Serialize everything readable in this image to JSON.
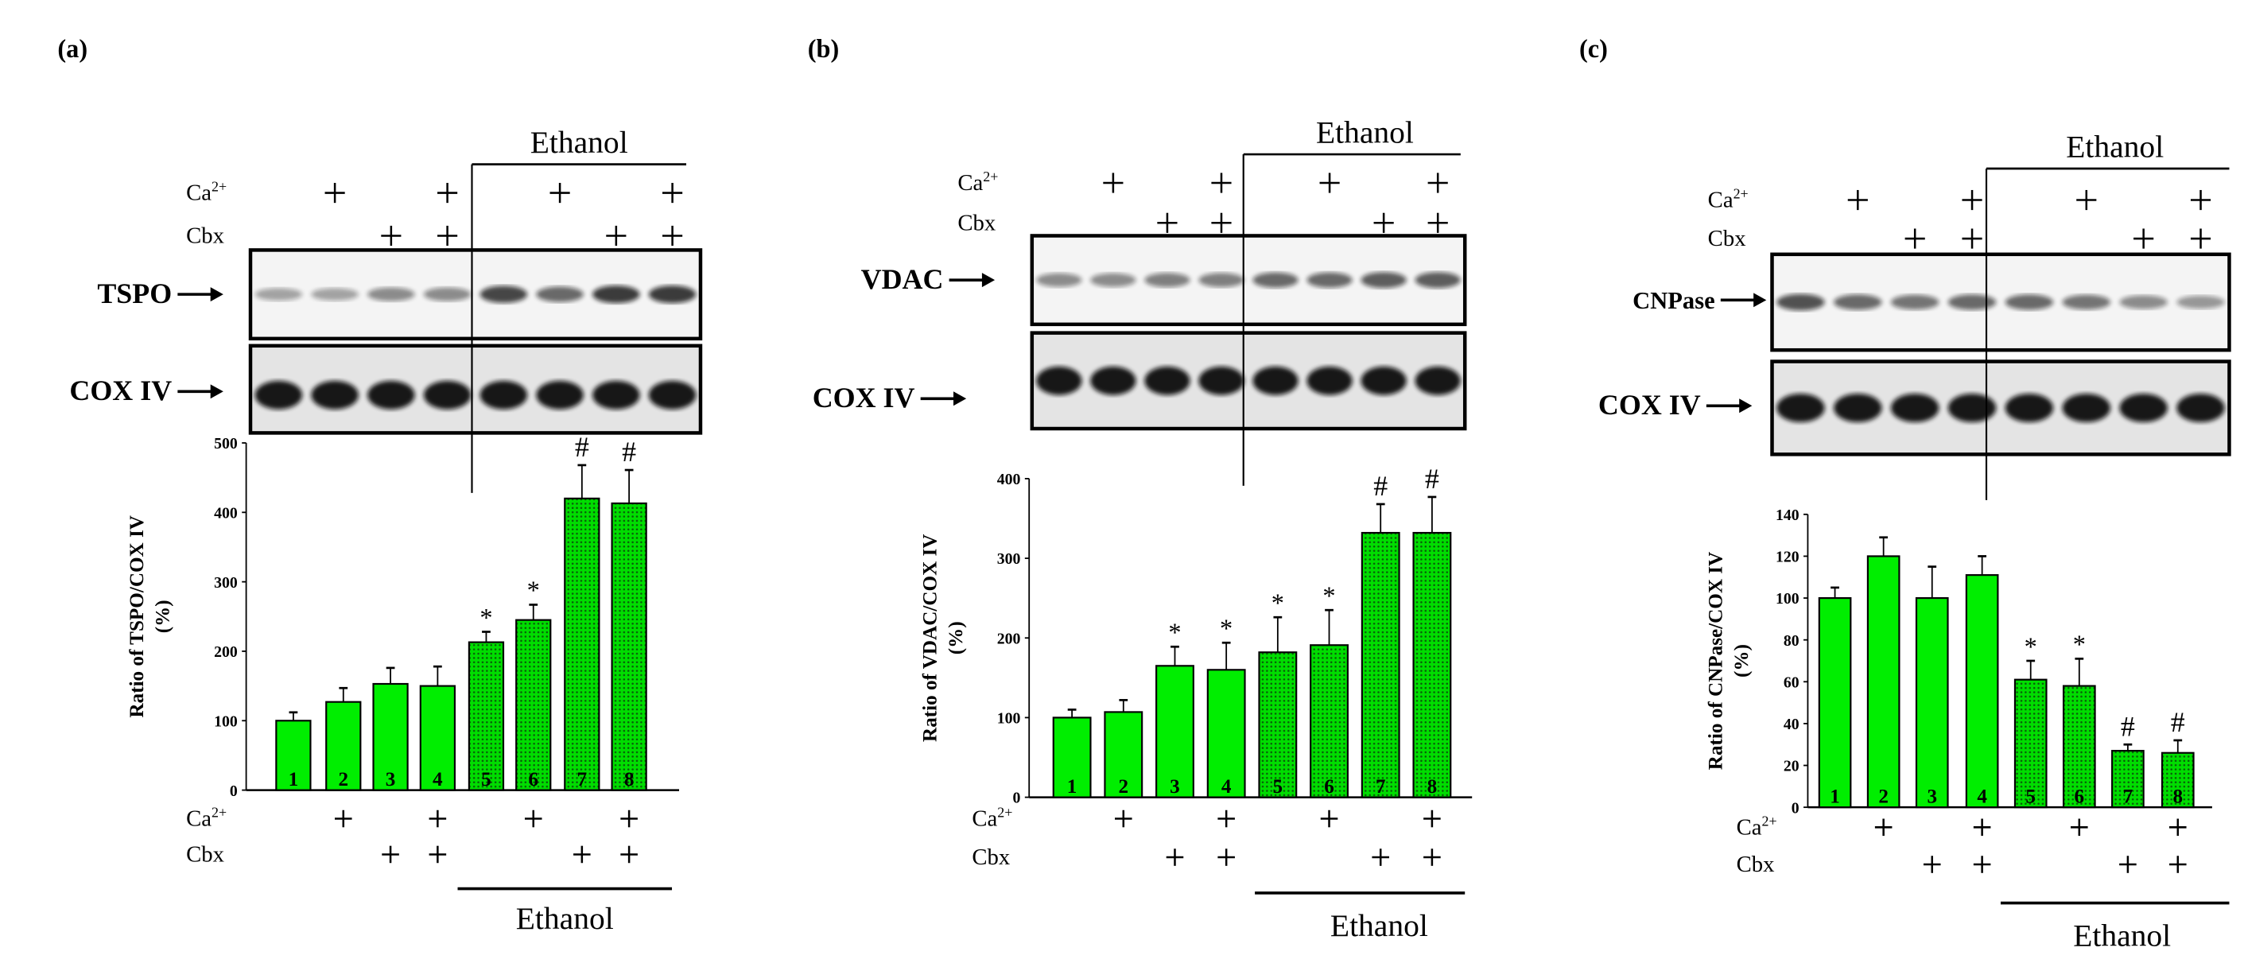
{
  "colors": {
    "bar": "#00ee00",
    "bar_dotted": "#00cc00",
    "ink": "#000000"
  },
  "chart_data": [
    {
      "type": "bar",
      "panel_label": "(a)",
      "blot_labels": [
        "TSPO",
        "COX IV"
      ],
      "treatment_group_label": "Ethanol",
      "row_labels": {
        "ca": "Ca",
        "ca_sup": "2+",
        "cbx": "Cbx"
      },
      "ca": [
        false,
        true,
        false,
        true,
        false,
        true,
        false,
        true
      ],
      "cbx": [
        false,
        false,
        true,
        true,
        false,
        false,
        true,
        true
      ],
      "categories": [
        "1",
        "2",
        "3",
        "4",
        "5",
        "6",
        "7",
        "8"
      ],
      "values": [
        100,
        127,
        153,
        150,
        213,
        245,
        420,
        413
      ],
      "errors": [
        12,
        20,
        23,
        28,
        15,
        22,
        48,
        48
      ],
      "annotations": [
        "",
        "",
        "",
        "",
        "*",
        "*",
        "#",
        "#"
      ],
      "ylabel": "Ratio of TSPO/COX IV",
      "ylabel2": "(%)",
      "ylim": [
        0,
        500
      ],
      "yticks": [
        "0",
        "100",
        "200",
        "300",
        "400",
        "500"
      ]
    },
    {
      "type": "bar",
      "panel_label": "(b)",
      "blot_labels": [
        "VDAC",
        "COX IV"
      ],
      "treatment_group_label": "Ethanol",
      "row_labels": {
        "ca": "Ca",
        "ca_sup": "2+",
        "cbx": "Cbx"
      },
      "ca": [
        false,
        true,
        false,
        true,
        false,
        true,
        false,
        true
      ],
      "cbx": [
        false,
        false,
        true,
        true,
        false,
        false,
        true,
        true
      ],
      "categories": [
        "1",
        "2",
        "3",
        "4",
        "5",
        "6",
        "7",
        "8"
      ],
      "values": [
        100,
        107,
        165,
        160,
        182,
        191,
        332,
        332
      ],
      "errors": [
        10,
        15,
        24,
        34,
        44,
        44,
        36,
        45
      ],
      "annotations": [
        "",
        "",
        "*",
        "*",
        "*",
        "*",
        "#",
        "#"
      ],
      "ylabel": "Ratio of VDAC/COX IV",
      "ylabel2": "(%)",
      "ylim": [
        0,
        400
      ],
      "yticks": [
        "0",
        "100",
        "200",
        "300",
        "400"
      ]
    },
    {
      "type": "bar",
      "panel_label": "(c)",
      "blot_labels": [
        "CNPase",
        "COX IV"
      ],
      "treatment_group_label": "Ethanol",
      "row_labels": {
        "ca": "Ca",
        "ca_sup": "2+",
        "cbx": "Cbx"
      },
      "ca": [
        false,
        true,
        false,
        true,
        false,
        true,
        false,
        true
      ],
      "cbx": [
        false,
        false,
        true,
        true,
        false,
        false,
        true,
        true
      ],
      "categories": [
        "1",
        "2",
        "3",
        "4",
        "5",
        "6",
        "7",
        "8"
      ],
      "values": [
        100,
        120,
        100,
        111,
        61,
        58,
        27,
        26
      ],
      "errors": [
        5,
        9,
        15,
        9,
        9,
        13,
        3,
        6
      ],
      "annotations": [
        "",
        "",
        "",
        "",
        "*",
        "*",
        "#",
        "#"
      ],
      "ylabel": "Ratio of CNPase/COX IV",
      "ylabel2": "(%)",
      "ylim": [
        0,
        140
      ],
      "yticks": [
        "0",
        "20",
        "40",
        "60",
        "80",
        "100",
        "120",
        "140"
      ]
    }
  ]
}
